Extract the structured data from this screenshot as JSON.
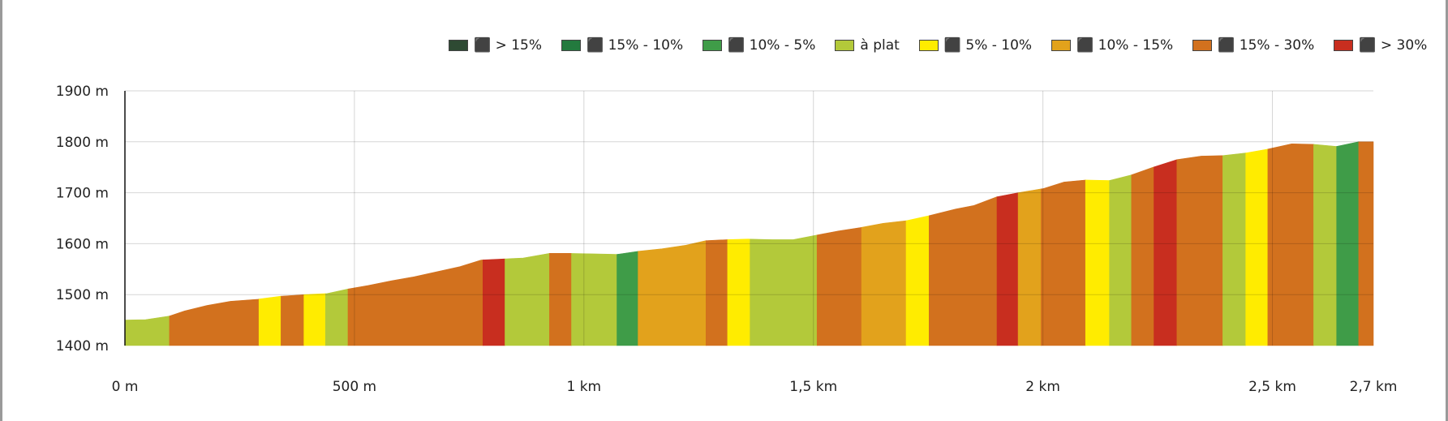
{
  "chart_data": {
    "type": "area",
    "legend": [
      {
        "label": "⬛ > 15%",
        "color": "#2e4a33"
      },
      {
        "label": "⬛ 15% - 10%",
        "color": "#237a3e"
      },
      {
        "label": "⬛ 10% - 5%",
        "color": "#3f9c48"
      },
      {
        "label": "à plat",
        "color": "#b3c93a"
      },
      {
        "label": "⬛ 5% - 10%",
        "color": "#ffec00"
      },
      {
        "label": "⬛ 10% - 15%",
        "color": "#e2a21c"
      },
      {
        "label": "⬛ 15% - 30%",
        "color": "#d2711e"
      },
      {
        "label": "⬛ > 30%",
        "color": "#c82e1f"
      }
    ],
    "x_unit": "m",
    "y_unit": "m",
    "xlim": [
      0,
      2720
    ],
    "ylim": [
      1400,
      1900
    ],
    "x_ticks": [
      {
        "value": 0,
        "label": "0 m"
      },
      {
        "value": 500,
        "label": "500 m"
      },
      {
        "value": 1000,
        "label": "1 km"
      },
      {
        "value": 1500,
        "label": "1,5 km"
      },
      {
        "value": 2000,
        "label": "2 km"
      },
      {
        "value": 2500,
        "label": "2,5 km"
      },
      {
        "value": 2720,
        "label": "2,7 km"
      }
    ],
    "y_ticks": [
      {
        "value": 1400,
        "label": "1400 m"
      },
      {
        "value": 1500,
        "label": "1500 m"
      },
      {
        "value": 1600,
        "label": "1600 m"
      },
      {
        "value": 1700,
        "label": "1700 m"
      },
      {
        "value": 1800,
        "label": "1800 m"
      },
      {
        "value": 1900,
        "label": "1900 m"
      }
    ],
    "profile": [
      [
        0,
        1450
      ],
      [
        45,
        1451
      ],
      [
        97,
        1458
      ],
      [
        130,
        1468
      ],
      [
        180,
        1479
      ],
      [
        230,
        1487
      ],
      [
        290,
        1491
      ],
      [
        340,
        1497
      ],
      [
        392,
        1500
      ],
      [
        440,
        1502
      ],
      [
        486,
        1511
      ],
      [
        530,
        1518
      ],
      [
        580,
        1527
      ],
      [
        630,
        1535
      ],
      [
        680,
        1545
      ],
      [
        730,
        1555
      ],
      [
        776,
        1568
      ],
      [
        826,
        1570
      ],
      [
        868,
        1572
      ],
      [
        925,
        1581
      ],
      [
        970,
        1581
      ],
      [
        1030,
        1580
      ],
      [
        1072,
        1579
      ],
      [
        1118,
        1585
      ],
      [
        1170,
        1590
      ],
      [
        1222,
        1597
      ],
      [
        1266,
        1606
      ],
      [
        1313,
        1608
      ],
      [
        1358,
        1609
      ],
      [
        1410,
        1608
      ],
      [
        1456,
        1608
      ],
      [
        1508,
        1617
      ],
      [
        1555,
        1625
      ],
      [
        1605,
        1632
      ],
      [
        1652,
        1640
      ],
      [
        1702,
        1645
      ],
      [
        1752,
        1655
      ],
      [
        1810,
        1668
      ],
      [
        1850,
        1675
      ],
      [
        1900,
        1692
      ],
      [
        1946,
        1700
      ],
      [
        2000,
        1708
      ],
      [
        2046,
        1721
      ],
      [
        2093,
        1725
      ],
      [
        2145,
        1724
      ],
      [
        2193,
        1735
      ],
      [
        2240,
        1750
      ],
      [
        2292,
        1765
      ],
      [
        2345,
        1772
      ],
      [
        2392,
        1773
      ],
      [
        2442,
        1778
      ],
      [
        2492,
        1786
      ],
      [
        2542,
        1796
      ],
      [
        2590,
        1795
      ],
      [
        2640,
        1791
      ],
      [
        2688,
        1800
      ],
      [
        2720,
        1800
      ]
    ],
    "segments": [
      {
        "x0": 0,
        "x1": 97,
        "category": "à plat"
      },
      {
        "x0": 97,
        "x1": 292,
        "category": "⬛ 15% - 30%"
      },
      {
        "x0": 292,
        "x1": 340,
        "category": "⬛ 5% - 10%"
      },
      {
        "x0": 340,
        "x1": 390,
        "category": "⬛ 15% - 30%"
      },
      {
        "x0": 390,
        "x1": 437,
        "category": "⬛ 5% - 10%"
      },
      {
        "x0": 437,
        "x1": 486,
        "category": "à plat"
      },
      {
        "x0": 486,
        "x1": 780,
        "category": "⬛ 15% - 30%"
      },
      {
        "x0": 780,
        "x1": 828,
        "category": "⬛ > 30%"
      },
      {
        "x0": 828,
        "x1": 925,
        "category": "à plat"
      },
      {
        "x0": 925,
        "x1": 973,
        "category": "⬛ 15% - 30%"
      },
      {
        "x0": 973,
        "x1": 1072,
        "category": "à plat"
      },
      {
        "x0": 1072,
        "x1": 1118,
        "category": "⬛ 10% - 5%"
      },
      {
        "x0": 1118,
        "x1": 1266,
        "category": "⬛ 10% - 15%"
      },
      {
        "x0": 1266,
        "x1": 1313,
        "category": "⬛ 15% - 30%"
      },
      {
        "x0": 1313,
        "x1": 1362,
        "category": "⬛ 5% - 10%"
      },
      {
        "x0": 1362,
        "x1": 1508,
        "category": "à plat"
      },
      {
        "x0": 1508,
        "x1": 1605,
        "category": "⬛ 15% - 30%"
      },
      {
        "x0": 1605,
        "x1": 1702,
        "category": "⬛ 10% - 15%"
      },
      {
        "x0": 1702,
        "x1": 1752,
        "category": "⬛ 5% - 10%"
      },
      {
        "x0": 1752,
        "x1": 1900,
        "category": "⬛ 15% - 30%"
      },
      {
        "x0": 1900,
        "x1": 1946,
        "category": "⬛ > 30%"
      },
      {
        "x0": 1946,
        "x1": 1996,
        "category": "⬛ 10% - 15%"
      },
      {
        "x0": 1996,
        "x1": 2093,
        "category": "⬛ 15% - 30%"
      },
      {
        "x0": 2093,
        "x1": 2145,
        "category": "⬛ 5% - 10%"
      },
      {
        "x0": 2145,
        "x1": 2193,
        "category": "à plat"
      },
      {
        "x0": 2193,
        "x1": 2242,
        "category": "⬛ 15% - 30%"
      },
      {
        "x0": 2242,
        "x1": 2292,
        "category": "⬛ > 30%"
      },
      {
        "x0": 2292,
        "x1": 2392,
        "category": "⬛ 15% - 30%"
      },
      {
        "x0": 2392,
        "x1": 2442,
        "category": "à plat"
      },
      {
        "x0": 2442,
        "x1": 2490,
        "category": "⬛ 5% - 10%"
      },
      {
        "x0": 2490,
        "x1": 2590,
        "category": "⬛ 15% - 30%"
      },
      {
        "x0": 2590,
        "x1": 2640,
        "category": "à plat"
      },
      {
        "x0": 2640,
        "x1": 2688,
        "category": "⬛ 10% - 5%"
      },
      {
        "x0": 2688,
        "x1": 2720,
        "category": "⬛ 15% - 30%"
      }
    ],
    "grid": true
  }
}
